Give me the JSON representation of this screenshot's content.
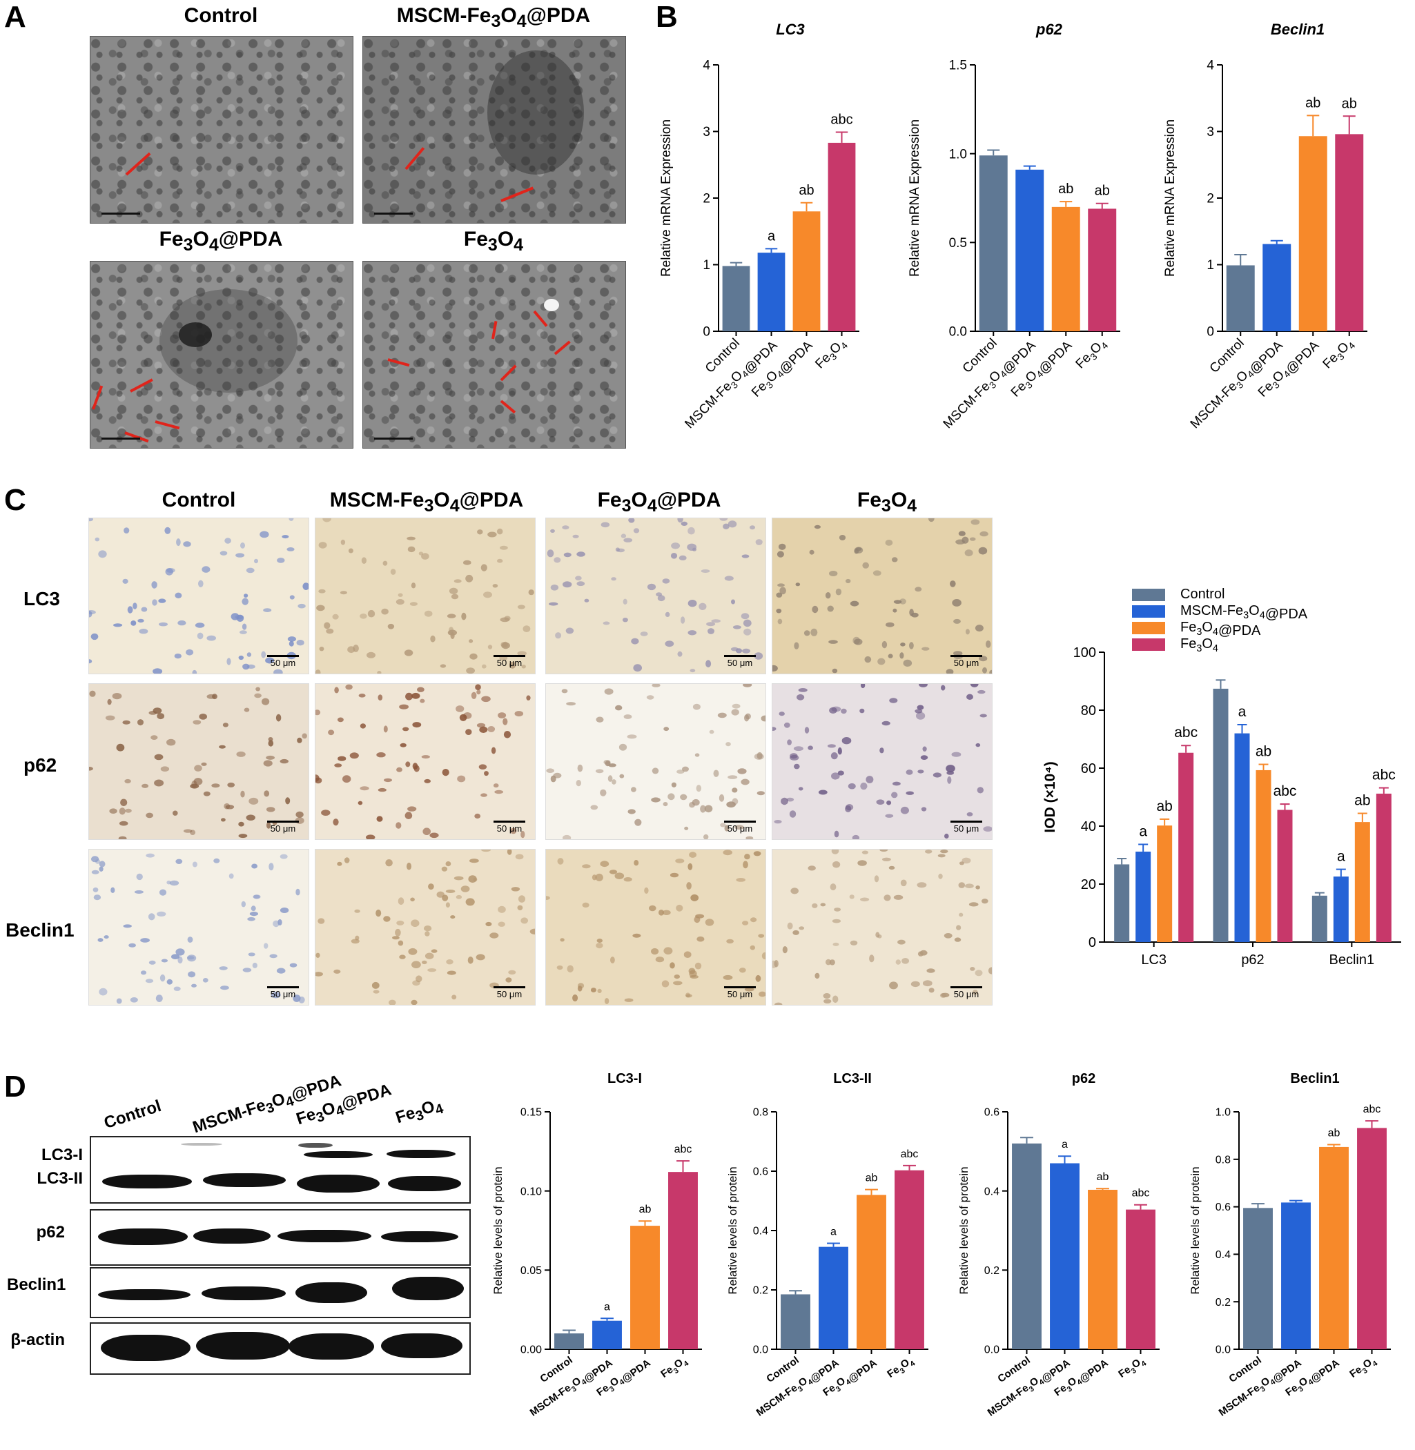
{
  "panels": {
    "A": "A",
    "B": "B",
    "C": "C",
    "D": "D"
  },
  "colors": {
    "control": "#5f7894",
    "mscm": "#2563d6",
    "fe3o4_pda": "#f7892a",
    "fe3o4": "#c7386a",
    "arrow": "#e0241b"
  },
  "group_labels": {
    "control": "Control",
    "mscm": "MSCM-Fe3O4@PDA",
    "fe3o4_pda": "Fe3O4@PDA",
    "fe3o4": "Fe3O4"
  },
  "ihc_rows": [
    "LC3",
    "p62",
    "Beclin1"
  ],
  "ihc_scale": "50 μm",
  "wb": {
    "labels": [
      "LC3-I",
      "LC3-II",
      "p62",
      "Beclin1",
      "β-actin"
    ]
  },
  "chart_data": [
    {
      "id": "B-LC3",
      "type": "bar",
      "title": "LC3",
      "ylabel": "Relative mRNA Expression",
      "ylim": [
        0,
        4
      ],
      "yticks": [
        "0",
        "1",
        "2",
        "3",
        "4"
      ],
      "categories": [
        "Control",
        "MSCM-Fe3O4@PDA",
        "Fe3O4@PDA",
        "Fe3O4"
      ],
      "values": [
        0.98,
        1.18,
        1.8,
        2.83
      ],
      "errors": [
        0.05,
        0.06,
        0.13,
        0.16
      ],
      "annotations": [
        "",
        "a",
        "ab",
        "abc"
      ]
    },
    {
      "id": "B-p62",
      "type": "bar",
      "title": "p62",
      "ylabel": "Relative mRNA Expression",
      "ylim": [
        0,
        1.5
      ],
      "yticks": [
        "0.0",
        "0.5",
        "1.0",
        "1.5"
      ],
      "categories": [
        "Control",
        "MSCM-Fe3O4@PDA",
        "Fe3O4@PDA",
        "Fe3O4"
      ],
      "values": [
        0.99,
        0.91,
        0.7,
        0.69
      ],
      "errors": [
        0.03,
        0.02,
        0.03,
        0.03
      ],
      "annotations": [
        "",
        "",
        "ab",
        "ab"
      ]
    },
    {
      "id": "B-Beclin1",
      "type": "bar",
      "title": "Beclin1",
      "ylabel": "Relative mRNA Expression",
      "ylim": [
        0,
        4
      ],
      "yticks": [
        "0",
        "1",
        "2",
        "3",
        "4"
      ],
      "categories": [
        "Control",
        "MSCM-Fe3O4@PDA",
        "Fe3O4@PDA",
        "Fe3O4"
      ],
      "values": [
        0.99,
        1.31,
        2.93,
        2.96
      ],
      "errors": [
        0.16,
        0.05,
        0.31,
        0.27
      ],
      "annotations": [
        "",
        "",
        "ab",
        "ab"
      ]
    },
    {
      "id": "C-IOD",
      "type": "bar",
      "ylabel": "IOD (×10⁴)",
      "ylim": [
        0,
        100
      ],
      "yticks": [
        "0",
        "20",
        "40",
        "60",
        "80",
        "100"
      ],
      "categories": [
        "LC3",
        "p62",
        "Beclin1"
      ],
      "legend": [
        "Control",
        "MSCM-Fe3O4@PDA",
        "Fe3O4@PDA",
        "Fe3O4"
      ],
      "series": [
        {
          "name": "Control",
          "values": [
            26.8,
            87.4,
            16.0
          ],
          "errors": [
            2.0,
            3.0,
            1.0
          ],
          "annotations": [
            "",
            "",
            ""
          ]
        },
        {
          "name": "MSCM-Fe3O4@PDA",
          "values": [
            31.2,
            72.0,
            22.6
          ],
          "errors": [
            2.5,
            3.0,
            2.5
          ],
          "annotations": [
            "a",
            "a",
            "a"
          ]
        },
        {
          "name": "Fe3O4@PDA",
          "values": [
            40.2,
            59.3,
            41.4
          ],
          "errors": [
            2.2,
            2.0,
            3.0
          ],
          "annotations": [
            "ab",
            "ab",
            "ab"
          ]
        },
        {
          "name": "Fe3O4",
          "values": [
            65.3,
            45.6,
            51.2
          ],
          "errors": [
            2.5,
            2.0,
            2.0
          ],
          "annotations": [
            "abc",
            "abc",
            "abc"
          ]
        }
      ]
    },
    {
      "id": "D-LC3-I",
      "type": "bar",
      "title": "LC3-I",
      "ylabel": "Relative levels of protein",
      "ylim": [
        0,
        0.15
      ],
      "yticks": [
        "0.00",
        "0.05",
        "0.10",
        "0.15"
      ],
      "categories": [
        "Control",
        "MSCM-Fe3O4@PDA",
        "Fe3O4@PDA",
        "Fe3O4"
      ],
      "values": [
        0.01,
        0.018,
        0.078,
        0.112
      ],
      "errors": [
        0.002,
        0.0015,
        0.003,
        0.007
      ],
      "annotations": [
        "",
        "a",
        "ab",
        "abc"
      ]
    },
    {
      "id": "D-LC3-II",
      "type": "bar",
      "title": "LC3-II",
      "ylabel": "Relative levels of protein",
      "ylim": [
        0,
        0.8
      ],
      "yticks": [
        "0.0",
        "0.2",
        "0.4",
        "0.6",
        "0.8"
      ],
      "categories": [
        "Control",
        "MSCM-Fe3O4@PDA",
        "Fe3O4@PDA",
        "Fe3O4"
      ],
      "values": [
        0.185,
        0.345,
        0.52,
        0.603
      ],
      "errors": [
        0.012,
        0.012,
        0.018,
        0.016
      ],
      "annotations": [
        "",
        "a",
        "ab",
        "abc"
      ]
    },
    {
      "id": "D-p62",
      "type": "bar",
      "title": "p62",
      "ylabel": "Relative levels of protein",
      "ylim": [
        0,
        0.6
      ],
      "yticks": [
        "0.0",
        "0.2",
        "0.4",
        "0.6"
      ],
      "categories": [
        "Control",
        "MSCM-Fe3O4@PDA",
        "Fe3O4@PDA",
        "Fe3O4"
      ],
      "values": [
        0.52,
        0.47,
        0.403,
        0.353
      ],
      "errors": [
        0.015,
        0.018,
        0.003,
        0.012
      ],
      "annotations": [
        "",
        "a",
        "ab",
        "abc"
      ]
    },
    {
      "id": "D-Beclin1",
      "type": "bar",
      "title": "Beclin1",
      "ylabel": "Relative levels of protein",
      "ylim": [
        0,
        1.0
      ],
      "yticks": [
        "0.0",
        "0.2",
        "0.4",
        "0.6",
        "0.8",
        "1.0"
      ],
      "categories": [
        "Control",
        "MSCM-Fe3O4@PDA",
        "Fe3O4@PDA",
        "Fe3O4"
      ],
      "values": [
        0.595,
        0.618,
        0.852,
        0.932
      ],
      "errors": [
        0.018,
        0.008,
        0.01,
        0.03
      ],
      "annotations": [
        "",
        "",
        "ab",
        "abc"
      ]
    }
  ]
}
